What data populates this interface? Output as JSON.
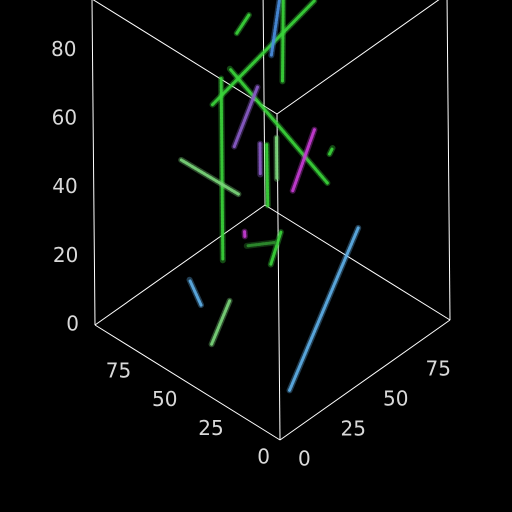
{
  "chart_data": {
    "type": "scatter",
    "subtype": "3d-line-segments",
    "title": "",
    "xlabel": "",
    "ylabel": "",
    "zlabel": "",
    "background": "#000000",
    "box_color": "#ffffff",
    "grid": false,
    "legend": "none",
    "axes": {
      "x": {
        "ticks": [
          0,
          25,
          50,
          75
        ],
        "range": [
          0,
          100
        ]
      },
      "y": {
        "ticks": [
          0,
          25,
          50,
          75
        ],
        "range": [
          0,
          100
        ]
      },
      "z": {
        "ticks": [
          0,
          20,
          40,
          60,
          80
        ],
        "range": [
          0,
          95
        ]
      }
    },
    "colors": {
      "green": "#3ad43a",
      "light_green": "#7bd67b",
      "dark_green": "#2f8f2f",
      "blue": "#4a8fe0",
      "cyan_blue": "#5fb0e8",
      "magenta": "#c83cd6",
      "purple": "#8a5cc8"
    },
    "segments": [
      {
        "from": [
          35,
          0,
          86
        ],
        "to": [
          48,
          74,
          86
        ],
        "color": "green"
      },
      {
        "from": [
          46,
          17,
          84
        ],
        "to": [
          46,
          17,
          31
        ],
        "color": "green"
      },
      {
        "from": [
          6,
          6,
          84
        ],
        "to": [
          6,
          6,
          72
        ],
        "color": "light_green"
      },
      {
        "from": [
          28,
          20,
          70
        ],
        "to": [
          28,
          20,
          61
        ],
        "color": "purple"
      },
      {
        "from": [
          2,
          8,
          11
        ],
        "to": [
          2,
          49,
          44
        ],
        "color": "cyan_blue"
      },
      {
        "from": [
          39,
          71,
          37
        ],
        "to": [
          84,
          63,
          58
        ],
        "color": "green"
      },
      {
        "from": [
          43,
          55,
          39
        ],
        "to": [
          56,
          82,
          43
        ],
        "color": "magenta"
      },
      {
        "from": [
          70,
          64,
          57
        ],
        "to": [
          82,
          63,
          36
        ],
        "color": "purple"
      },
      {
        "from": [
          80,
          92,
          82
        ],
        "to": [
          93,
          97,
          47
        ],
        "color": "blue"
      },
      {
        "from": [
          72,
          82,
          84
        ],
        "to": [
          75,
          84,
          50
        ],
        "color": "green"
      },
      {
        "from": [
          81,
          64,
          69
        ],
        "to": [
          92,
          83,
          64
        ],
        "color": "green"
      },
      {
        "from": [
          53,
          34,
          42
        ],
        "to": [
          96,
          47,
          33
        ],
        "color": "light_green"
      },
      {
        "from": [
          36,
          10,
          25
        ],
        "to": [
          46,
          10,
          9
        ],
        "color": "light_green"
      },
      {
        "from": [
          45,
          50,
          28
        ],
        "to": [
          46,
          45,
          20
        ],
        "color": "green"
      },
      {
        "from": [
          30,
          30,
          37
        ],
        "to": [
          45,
          30,
          31
        ],
        "color": "dark_green"
      },
      {
        "from": [
          60,
          95,
          30
        ],
        "to": [
          63,
          100,
          29
        ],
        "color": "green"
      },
      {
        "from": [
          92,
          93,
          5
        ],
        "to": [
          96,
          97,
          20
        ],
        "color": "green"
      },
      {
        "from": [
          86,
          73,
          5
        ],
        "to": [
          88,
          75,
          5
        ],
        "color": "magenta"
      },
      {
        "from": [
          72,
          32,
          4
        ],
        "to": [
          80,
          34,
          8
        ],
        "color": "cyan_blue"
      }
    ]
  }
}
